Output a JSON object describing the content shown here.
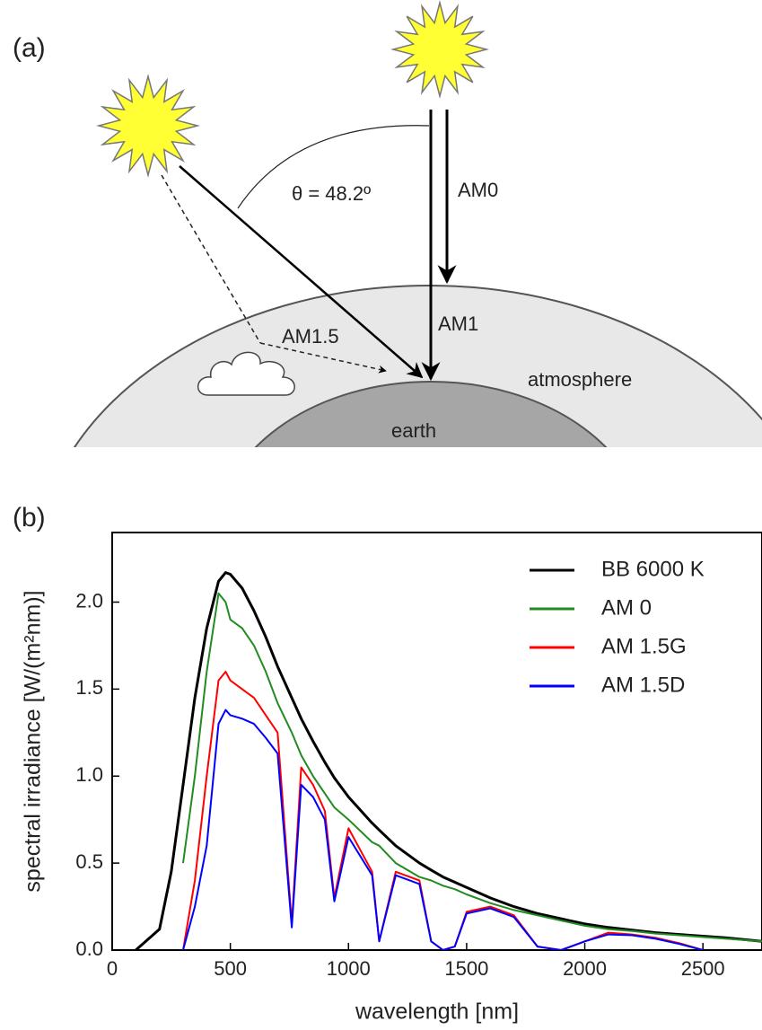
{
  "diagram": {
    "panel_label": "(a)",
    "angle_label": "θ = 48.2º",
    "labels": {
      "am0": "AM0",
      "am1": "AM1",
      "am15": "AM1.5",
      "atmosphere": "atmosphere",
      "earth": "earth"
    }
  },
  "chart_data": {
    "type": "line",
    "panel_label": "(b)",
    "xlabel": "wavelength [nm]",
    "ylabel": "spectral irradiance [W/(m²nm)]",
    "x": [
      100,
      200,
      250,
      300,
      350,
      400,
      450,
      480,
      500,
      550,
      600,
      650,
      700,
      760,
      800,
      850,
      900,
      940,
      1000,
      1100,
      1130,
      1200,
      1300,
      1350,
      1400,
      1450,
      1500,
      1600,
      1700,
      1800,
      1900,
      2000,
      2100,
      2200,
      2300,
      2400,
      2500,
      2600,
      2750
    ],
    "series": [
      {
        "name": "BB 6000 K",
        "color": "#000000",
        "values": [
          0.0,
          0.12,
          0.45,
          0.95,
          1.45,
          1.85,
          2.12,
          2.17,
          2.16,
          2.08,
          1.95,
          1.8,
          1.63,
          1.45,
          1.33,
          1.2,
          1.08,
          0.99,
          0.88,
          0.73,
          0.69,
          0.6,
          0.5,
          0.46,
          0.42,
          0.39,
          0.36,
          0.3,
          0.25,
          0.21,
          0.18,
          0.15,
          0.13,
          0.115,
          0.1,
          0.09,
          0.08,
          0.07,
          0.05
        ]
      },
      {
        "name": "AM 0",
        "color": "#228b22",
        "values": [
          null,
          null,
          null,
          0.5,
          1.0,
          1.6,
          2.05,
          2.0,
          1.9,
          1.85,
          1.75,
          1.6,
          1.42,
          1.25,
          1.12,
          1.0,
          0.9,
          0.82,
          0.75,
          0.62,
          0.6,
          0.5,
          0.42,
          0.4,
          0.37,
          0.35,
          0.32,
          0.27,
          0.23,
          0.2,
          0.17,
          0.14,
          0.12,
          0.11,
          0.095,
          0.085,
          0.075,
          0.065,
          0.05
        ]
      },
      {
        "name": "AM 1.5G",
        "color": "#ff0000",
        "values": [
          null,
          null,
          null,
          0.0,
          0.4,
          1.0,
          1.55,
          1.6,
          1.55,
          1.5,
          1.45,
          1.35,
          1.25,
          0.15,
          1.05,
          0.95,
          0.8,
          0.3,
          0.7,
          0.45,
          0.05,
          0.45,
          0.4,
          0.05,
          0.0,
          0.02,
          0.22,
          0.25,
          0.2,
          0.02,
          0.0,
          0.05,
          0.1,
          0.09,
          0.07,
          0.04,
          0.0,
          null,
          null
        ]
      },
      {
        "name": "AM 1.5D",
        "color": "#0000ff",
        "values": [
          null,
          null,
          null,
          0.0,
          0.25,
          0.6,
          1.3,
          1.38,
          1.35,
          1.33,
          1.3,
          1.22,
          1.13,
          0.13,
          0.95,
          0.88,
          0.75,
          0.28,
          0.65,
          0.43,
          0.05,
          0.43,
          0.38,
          0.05,
          0.0,
          0.02,
          0.21,
          0.24,
          0.19,
          0.02,
          0.0,
          0.05,
          0.09,
          0.085,
          0.065,
          0.035,
          0.0,
          null,
          null
        ]
      }
    ],
    "xlim": [
      0,
      2750
    ],
    "xticks": [
      0,
      500,
      1000,
      1500,
      2000,
      2500
    ],
    "ylim": [
      0,
      2.4
    ],
    "yticks": [
      {
        "value": 0,
        "label": "0.0"
      },
      {
        "value": 0.5,
        "label": "0.5"
      },
      {
        "value": 1,
        "label": "1.0"
      },
      {
        "value": 1.5,
        "label": "1.5"
      },
      {
        "value": 2,
        "label": "2.0"
      }
    ],
    "legend": "upper right"
  }
}
